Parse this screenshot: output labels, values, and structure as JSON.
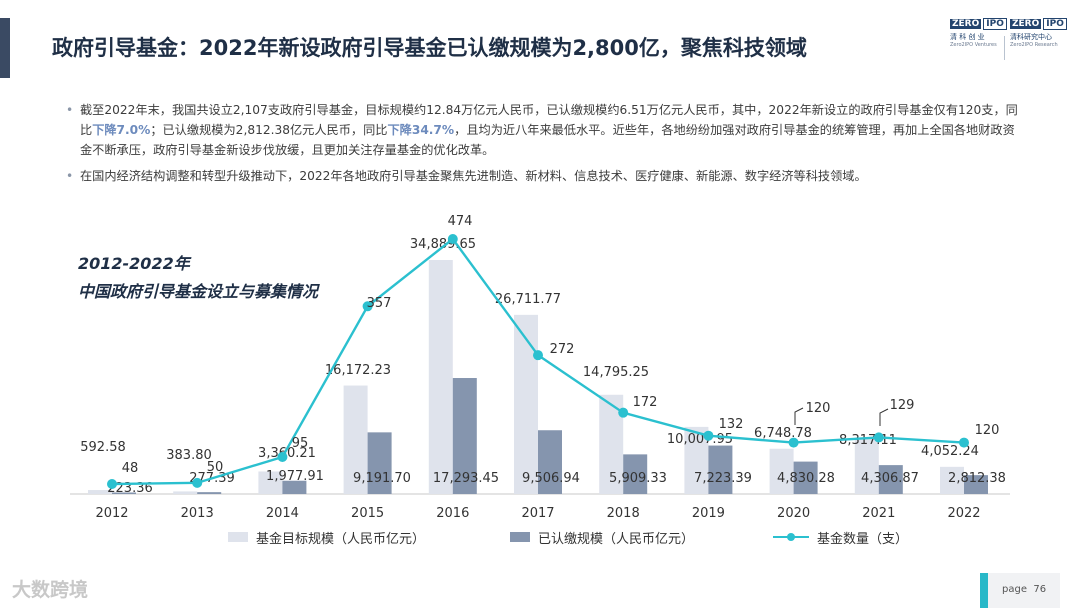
{
  "header": {
    "title": "政府引导基金：2022年新设政府引导基金已认缴规模为2,800亿，聚焦科技领域",
    "logo1": {
      "top": "ZERO",
      "bottom": "IPO",
      "cn": "清 科 创 业",
      "en": "Zero2IPO Ventures"
    },
    "logo2": {
      "top": "ZERO",
      "bottom": "IPO",
      "cn": "清科研究中心",
      "en": "Zero2IPO Research"
    }
  },
  "bullets": {
    "b1_p1": "截至2022年末，我国共设立2,107支政府引导基金，目标规模约12.84万亿元人民币，已认缴规模约6.51万亿元人民币，其中，2022年新设立的政府引导基金仅有120支，同比",
    "b1_hl1": "下降7.0%",
    "b1_p2": "；已认缴规模为2,812.38亿元人民币，同比",
    "b1_hl2": "下降34.7%",
    "b1_p3": "，且均为近八年来最低水平。近些年，各地纷纷加强对政府引导基金的统筹管理，再加上全国各地财政资金不断承压，政府引导基金新设步伐放缓，且更加关注存量基金的优化改革。",
    "b2": "在国内经济结构调整和转型升级推动下，2022年各地政府引导基金聚焦先进制造、新材料、信息技术、医疗健康、新能源、数字经济等科技领域。"
  },
  "chart_title": {
    "line1": "2012-2022年",
    "line2": "中国政府引导基金设立与募集情况"
  },
  "chart_data": {
    "type": "bar",
    "title": "2012-2022年 中国政府引导基金设立与募集情况",
    "categories": [
      "2012",
      "2013",
      "2014",
      "2015",
      "2016",
      "2017",
      "2018",
      "2019",
      "2020",
      "2021",
      "2022"
    ],
    "series": [
      {
        "name": "基金目标规模（人民币亿元）",
        "type": "bar",
        "color": "#dfe3ec",
        "values": [
          592.58,
          383.8,
          3360.21,
          16172.23,
          34889.65,
          26711.77,
          14795.25,
          10007.95,
          6748.78,
          8317.11,
          4052.24
        ],
        "labels": [
          "592.58",
          "383.80",
          "3,360.21",
          "16,172.23",
          "34,889.65",
          "26,711.77",
          "14,795.25",
          "10,007.95",
          "6,748.78",
          "8,317.11",
          "4,052.24"
        ]
      },
      {
        "name": "已认缴规模（人民币亿元）",
        "type": "bar",
        "color": "#8595ae",
        "values": [
          223.36,
          277.39,
          1977.91,
          9191.7,
          17293.45,
          9506.94,
          5909.33,
          7223.39,
          4830.28,
          4306.87,
          2812.38
        ],
        "labels": [
          "223.36",
          "277.39",
          "1,977.91",
          "9,191.70",
          "17,293.45",
          "9,506.94",
          "5,909.33",
          "7,223.39",
          "4,830.28",
          "4,306.87",
          "2,812.38"
        ]
      },
      {
        "name": "基金数量（支）",
        "type": "line",
        "color": "#2bc0cf",
        "values": [
          48,
          50,
          95,
          357,
          474,
          272,
          172,
          132,
          120,
          129,
          120
        ],
        "labels": [
          "48",
          "50",
          "95",
          "357",
          "474",
          "272",
          "172",
          "132",
          "120",
          "129",
          "120"
        ]
      }
    ],
    "ylim_bars": [
      0,
      38000
    ],
    "ylim_line": [
      0,
      520
    ],
    "grid": false,
    "legend": "bottom"
  },
  "legend": {
    "target": "基金目标规模（人民币亿元）",
    "paid": "已认缴规模（人民币亿元）",
    "count": "基金数量（支）"
  },
  "page": {
    "label": "page",
    "number": "76"
  },
  "watermark": "大数跨境"
}
